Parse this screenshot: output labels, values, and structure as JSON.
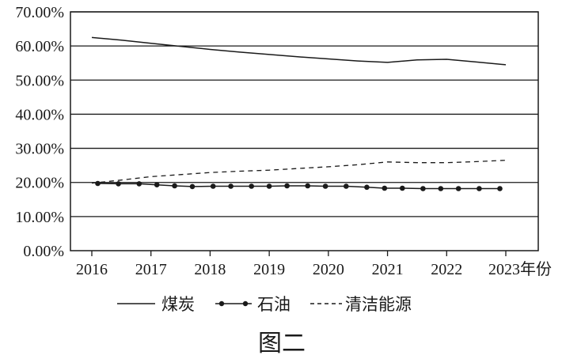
{
  "chart_data": {
    "type": "line",
    "title": "",
    "caption": "图二",
    "xlabel": "年份",
    "ylabel": "",
    "x": [
      2016,
      2016.5,
      2017,
      2017.5,
      2018,
      2018.5,
      2019,
      2019.5,
      2020,
      2020.5,
      2021,
      2021.5,
      2022,
      2022.5,
      2023
    ],
    "x_ticks": [
      "2016",
      "2017",
      "2018",
      "2019",
      "2020",
      "2021",
      "2022",
      "2023"
    ],
    "x_last_tick_label": "2023年份",
    "y_ticks": [
      "0.00%",
      "10.00%",
      "20.00%",
      "30.00%",
      "40.00%",
      "50.00%",
      "60.00%",
      "70.00%"
    ],
    "ylim": [
      0,
      70
    ],
    "grid": "horizontal",
    "series": [
      {
        "name": "煤炭",
        "style": "solid",
        "points": [
          [
            2016,
            62.5
          ],
          [
            2016.5,
            61.7
          ],
          [
            2017,
            60.8
          ],
          [
            2017.5,
            59.9
          ],
          [
            2018,
            59.0
          ],
          [
            2018.5,
            58.2
          ],
          [
            2019,
            57.5
          ],
          [
            2019.5,
            56.8
          ],
          [
            2020,
            56.2
          ],
          [
            2020.5,
            55.6
          ],
          [
            2021,
            55.2
          ],
          [
            2021.5,
            55.9
          ],
          [
            2022,
            56.1
          ],
          [
            2022.5,
            55.3
          ],
          [
            2023,
            54.5
          ]
        ]
      },
      {
        "name": "石油",
        "style": "dot-marker",
        "points": [
          [
            2016.1,
            19.7
          ],
          [
            2016.45,
            19.6
          ],
          [
            2016.8,
            19.6
          ],
          [
            2017.1,
            19.3
          ],
          [
            2017.4,
            19.0
          ],
          [
            2017.7,
            18.8
          ],
          [
            2018.05,
            18.9
          ],
          [
            2018.35,
            18.9
          ],
          [
            2018.7,
            18.9
          ],
          [
            2019.0,
            18.9
          ],
          [
            2019.3,
            19.0
          ],
          [
            2019.65,
            19.0
          ],
          [
            2019.95,
            18.9
          ],
          [
            2020.3,
            18.9
          ],
          [
            2020.65,
            18.6
          ],
          [
            2020.95,
            18.3
          ],
          [
            2021.25,
            18.3
          ],
          [
            2021.6,
            18.2
          ],
          [
            2021.9,
            18.2
          ],
          [
            2022.2,
            18.2
          ],
          [
            2022.55,
            18.2
          ],
          [
            2022.9,
            18.2
          ]
        ]
      },
      {
        "name": "清洁能源",
        "style": "dashed",
        "points": [
          [
            2016,
            19.8
          ],
          [
            2016.5,
            20.7
          ],
          [
            2017,
            21.7
          ],
          [
            2017.5,
            22.3
          ],
          [
            2018,
            22.9
          ],
          [
            2018.5,
            23.3
          ],
          [
            2019,
            23.6
          ],
          [
            2019.5,
            24.1
          ],
          [
            2020,
            24.6
          ],
          [
            2020.5,
            25.2
          ],
          [
            2021,
            26.0
          ],
          [
            2021.5,
            25.8
          ],
          [
            2022,
            25.8
          ],
          [
            2022.5,
            26.1
          ],
          [
            2023,
            26.5
          ]
        ]
      }
    ],
    "legend_position": "bottom"
  }
}
